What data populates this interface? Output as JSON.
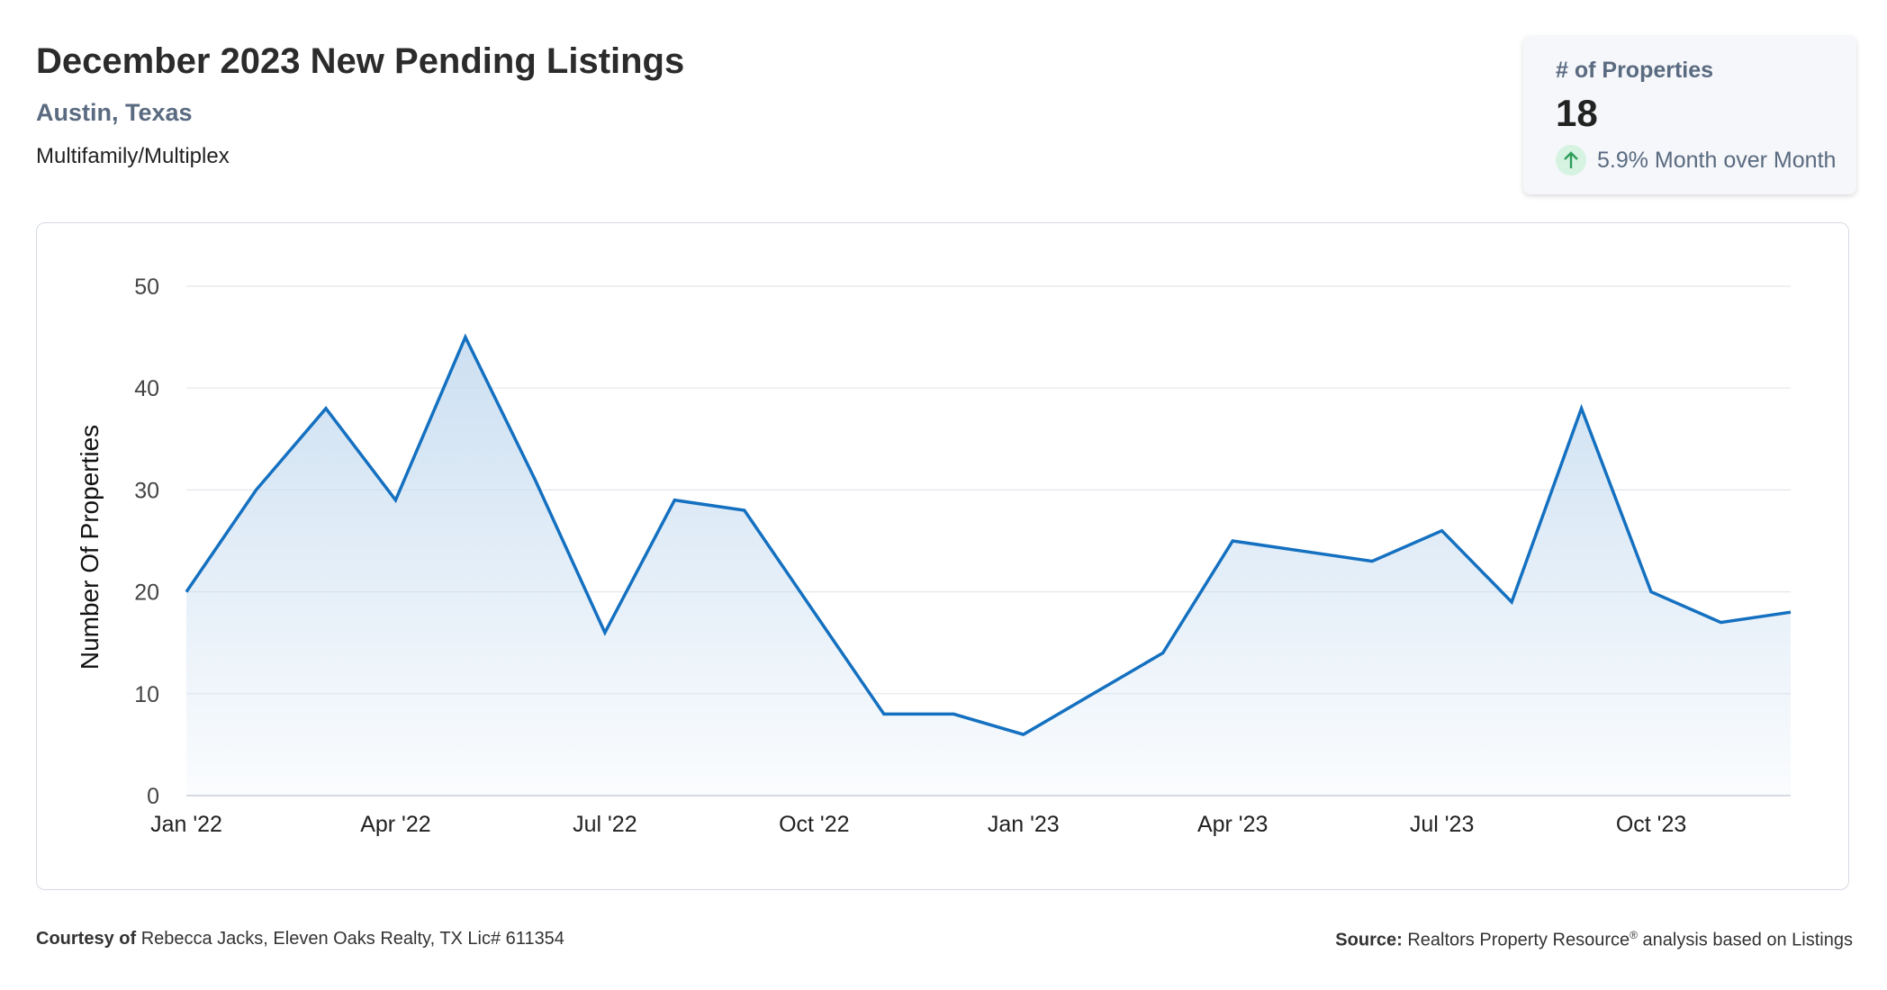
{
  "header": {
    "title": "December 2023 New Pending Listings",
    "location": "Austin, Texas",
    "property_type": "Multifamily/Multiplex"
  },
  "kpi": {
    "label": "# of Properties",
    "value": "18",
    "change": "5.9% Month over Month",
    "direction_icon": "arrow-up-icon",
    "positive_color": "#2e9e5b"
  },
  "footer": {
    "courtesy_label": "Courtesy of",
    "courtesy_text": "Rebecca Jacks, Eleven Oaks Realty, TX Lic# 611354",
    "source_label": "Source:",
    "source_text_a": "Realtors Property Resource",
    "source_sup": "®",
    "source_text_b": " analysis based on Listings"
  },
  "colors": {
    "line": "#1470c0",
    "fill": "#cfe2f3",
    "grid": "#e3e7ec"
  },
  "chart_data": {
    "type": "area",
    "title": "",
    "xlabel": "",
    "ylabel": "Number Of Properties",
    "ylim": [
      0,
      50
    ],
    "yticks": [
      0,
      10,
      20,
      30,
      40,
      50
    ],
    "grid": true,
    "x": [
      "2022-01",
      "2022-02",
      "2022-03",
      "2022-04",
      "2022-05",
      "2022-06",
      "2022-07",
      "2022-08",
      "2022-09",
      "2022-10",
      "2022-11",
      "2022-12",
      "2023-01",
      "2023-02",
      "2023-03",
      "2023-04",
      "2023-05",
      "2023-06",
      "2023-07",
      "2023-08",
      "2023-09",
      "2023-10",
      "2023-11",
      "2023-12"
    ],
    "xtick_labels": [
      {
        "x": "2022-01",
        "label": "Jan '22"
      },
      {
        "x": "2022-04",
        "label": "Apr '22"
      },
      {
        "x": "2022-07",
        "label": "Jul '22"
      },
      {
        "x": "2022-10",
        "label": "Oct '22"
      },
      {
        "x": "2023-01",
        "label": "Jan '23"
      },
      {
        "x": "2023-04",
        "label": "Apr '23"
      },
      {
        "x": "2023-07",
        "label": "Jul '23"
      },
      {
        "x": "2023-10",
        "label": "Oct '23"
      }
    ],
    "series": [
      {
        "values": [
          20,
          30,
          38,
          29,
          45,
          31,
          16,
          29,
          28,
          18,
          8,
          8,
          6,
          10,
          14,
          25,
          24,
          23,
          26,
          19,
          38,
          20,
          17,
          18
        ]
      }
    ]
  }
}
